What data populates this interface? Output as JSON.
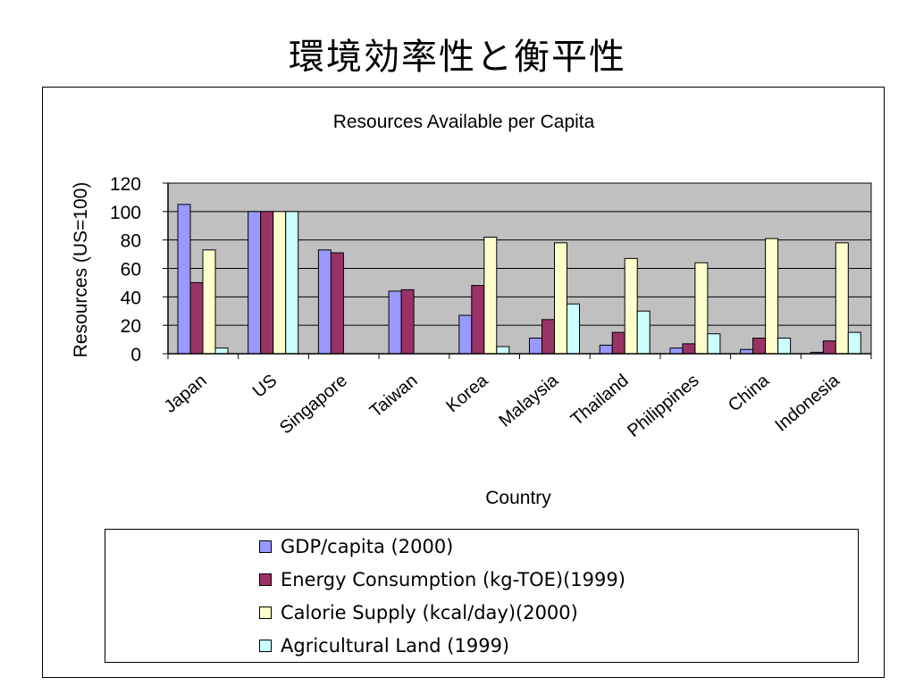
{
  "slide": {
    "title": "環境効率性と衡平性"
  },
  "chart_data": {
    "type": "bar",
    "title": "Resources Available per Capita",
    "xlabel": "Country",
    "ylabel": "Resources (US=100)",
    "ylim": [
      0,
      120
    ],
    "yticks": [
      0,
      20,
      40,
      60,
      80,
      100,
      120
    ],
    "grid": true,
    "plot_background": "#c0c0c0",
    "legend_position": "bottom",
    "categories": [
      "Japan",
      "US",
      "Singapore",
      "Taiwan",
      "Korea",
      "Malaysia",
      "Thailand",
      "Philippines",
      "China",
      "Indonesia"
    ],
    "series": [
      {
        "name": "GDP/capita (2000)",
        "color": "#9999ff",
        "values": [
          105,
          100,
          73,
          44,
          27,
          11,
          6,
          4,
          3,
          1
        ]
      },
      {
        "name": "Energy Consumption (kg-TOE)(1999)",
        "color": "#993366",
        "values": [
          50,
          100,
          71,
          45,
          48,
          24,
          15,
          7,
          11,
          9
        ]
      },
      {
        "name": "Calorie Supply (kcal/day)(2000)",
        "color": "#ffffcc",
        "values": [
          73,
          100,
          null,
          null,
          82,
          78,
          67,
          64,
          81,
          78
        ]
      },
      {
        "name": "Agricultural Land (1999)",
        "color": "#ccffff",
        "values": [
          4,
          100,
          null,
          null,
          5,
          35,
          30,
          14,
          11,
          15
        ]
      }
    ]
  }
}
